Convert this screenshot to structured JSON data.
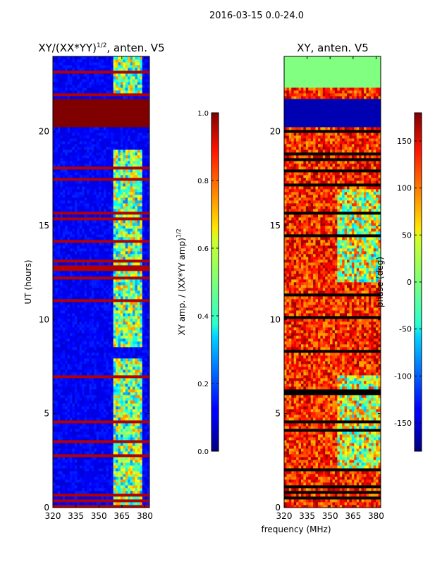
{
  "suptitle": "2016-03-15 0.0-24.0",
  "chart_data": [
    {
      "type": "heatmap",
      "title_main": "XY/(XX*YY)",
      "title_exp": "1/2",
      "title_tail": ", anten. V5",
      "ylabel": "UT (hours)",
      "xlabel": "",
      "x_ticks": [
        "320",
        "335",
        "350",
        "365",
        "380"
      ],
      "x_tick_values": [
        320,
        335,
        350,
        365,
        380
      ],
      "xlim": [
        320,
        383
      ],
      "y_ticks": [
        "0",
        "5",
        "10",
        "15",
        "20"
      ],
      "y_tick_values": [
        0,
        5,
        10,
        15,
        20
      ],
      "ylim": [
        0,
        24
      ],
      "colorbar": {
        "label_main": "XY amp. / (XX*YY amp)",
        "label_exp": "1/2",
        "ticks": [
          "0.0",
          "0.2",
          "0.4",
          "0.6",
          "0.8",
          "1.0"
        ],
        "tick_values": [
          0,
          0.2,
          0.4,
          0.6,
          0.8,
          1.0
        ],
        "range": [
          0,
          1
        ]
      },
      "active_band_MHz": [
        360,
        378
      ],
      "saturated_rows_UT": [
        [
          20.3,
          21.8
        ]
      ]
    },
    {
      "type": "heatmap",
      "title": "XY, anten. V5",
      "xlabel": "frequency (MHz)",
      "ylabel": "",
      "x_ticks": [
        "320",
        "335",
        "350",
        "365",
        "380"
      ],
      "x_tick_values": [
        320,
        335,
        350,
        365,
        380
      ],
      "xlim": [
        320,
        383
      ],
      "y_ticks": [
        "0",
        "5",
        "10",
        "15",
        "20"
      ],
      "y_tick_values": [
        0,
        5,
        10,
        15,
        20
      ],
      "ylim": [
        0,
        24
      ],
      "colorbar": {
        "label": "phase (deg)",
        "ticks": [
          "-150",
          "-100",
          "-50",
          "0",
          "50",
          "100",
          "150"
        ],
        "tick_values": [
          -150,
          -100,
          -50,
          0,
          50,
          100,
          150
        ],
        "range": [
          -180,
          180
        ]
      },
      "flagged_rows_UT": [
        [
          22.4,
          24.0
        ],
        [
          20.3,
          21.8
        ]
      ]
    }
  ]
}
